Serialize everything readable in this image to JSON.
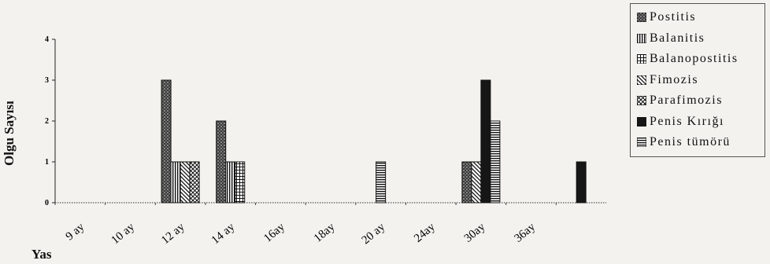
{
  "chart_data": {
    "type": "bar",
    "xlabel": "Yas",
    "ylabel": "Olgu Sayısı",
    "ylim": [
      0,
      4
    ],
    "yticks": [
      0,
      1,
      2,
      3,
      4
    ],
    "grid": false,
    "legend_position": "top-right",
    "categories": [
      "9 ay",
      "10 ay",
      "12 ay",
      "14 ay",
      "16ay",
      "18ay",
      "20 ay",
      "24ay",
      "30ay",
      "36ay",
      ""
    ],
    "series": [
      {
        "name": "Postitis",
        "pattern": "dots-dark",
        "values": [
          0,
          0,
          3,
          2,
          0,
          0,
          0,
          0,
          1,
          0,
          0
        ]
      },
      {
        "name": "Balanitis",
        "pattern": "vlines",
        "values": [
          0,
          0,
          1,
          1,
          0,
          0,
          0,
          0,
          0,
          0,
          0
        ]
      },
      {
        "name": "Balanopostitis",
        "pattern": "grid",
        "values": [
          0,
          0,
          0,
          1,
          0,
          0,
          0,
          0,
          0,
          0,
          0
        ]
      },
      {
        "name": "Fimozis",
        "pattern": "diagonal",
        "values": [
          0,
          0,
          1,
          0,
          0,
          0,
          0,
          0,
          1,
          0,
          0
        ]
      },
      {
        "name": "Parafimozis",
        "pattern": "crosshatch",
        "values": [
          0,
          0,
          1,
          0,
          0,
          0,
          0,
          0,
          0,
          0,
          0
        ]
      },
      {
        "name": "Penis Kırığı",
        "pattern": "solid",
        "values": [
          0,
          0,
          0,
          0,
          0,
          0,
          0,
          0,
          3,
          0,
          1
        ]
      },
      {
        "name": "Penis tümörü",
        "pattern": "hlines",
        "values": [
          0,
          0,
          0,
          0,
          0,
          0,
          1,
          0,
          2,
          0,
          0
        ]
      }
    ]
  }
}
